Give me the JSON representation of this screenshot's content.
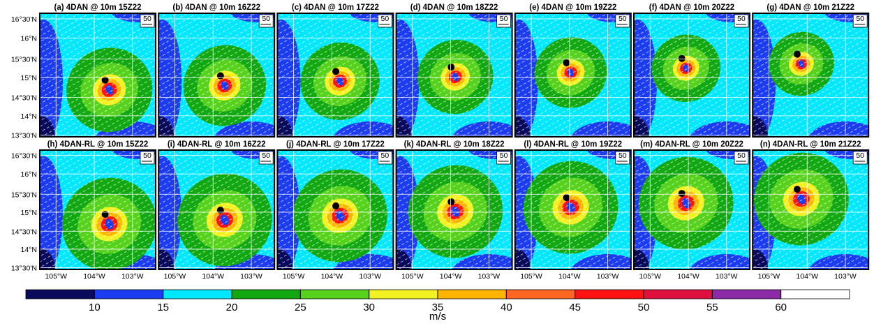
{
  "panels": [
    {
      "title": "(a) 4DAN @ 10m 15Z22"
    },
    {
      "title": "(b) 4DAN @ 10m 16Z22"
    },
    {
      "title": "(c) 4DAN @ 10m 17Z22"
    },
    {
      "title": "(d) 4DAN @ 10m 18Z22"
    },
    {
      "title": "(e) 4DAN @ 10m 19Z22"
    },
    {
      "title": "(f) 4DAN @ 10m 20Z22"
    },
    {
      "title": "(g) 4DAN @ 10m 21Z22"
    },
    {
      "title": "(h) 4DAN-RL @ 10m 15Z22"
    },
    {
      "title": "(i) 4DAN-RL @ 10m 16Z22"
    },
    {
      "title": "(j) 4DAN-RL @ 10m 17Z22"
    },
    {
      "title": "(k) 4DAN-RL @ 10m 18Z22"
    },
    {
      "title": "(l) 4DAN-RL @ 10m 19Z22"
    },
    {
      "title": "(m) 4DAN-RL @ 10m 20Z22"
    },
    {
      "title": "(n) 4DAN-RL @ 10m 21Z22"
    }
  ],
  "lat_labels": [
    "16°30'N",
    "16°N",
    "15°30'N",
    "15°N",
    "14°30'N",
    "14°N",
    "13°30'N"
  ],
  "lon_labels": [
    "105°W",
    "104°W",
    "103°W"
  ],
  "reference_vector": "50",
  "colorbar": {
    "lim": [
      5,
      65
    ],
    "ticks": [
      10,
      15,
      20,
      25,
      30,
      35,
      40,
      45,
      50,
      55,
      60
    ],
    "colors": [
      "#0a0a5c",
      "#1c3cf2",
      "#00e8ff",
      "#12a812",
      "#56d21c",
      "#f2f222",
      "#ffb400",
      "#ff6622",
      "#ff1212",
      "#e0103e",
      "#8c2aa8",
      "#ffffff"
    ],
    "unit": "m/s"
  }
}
